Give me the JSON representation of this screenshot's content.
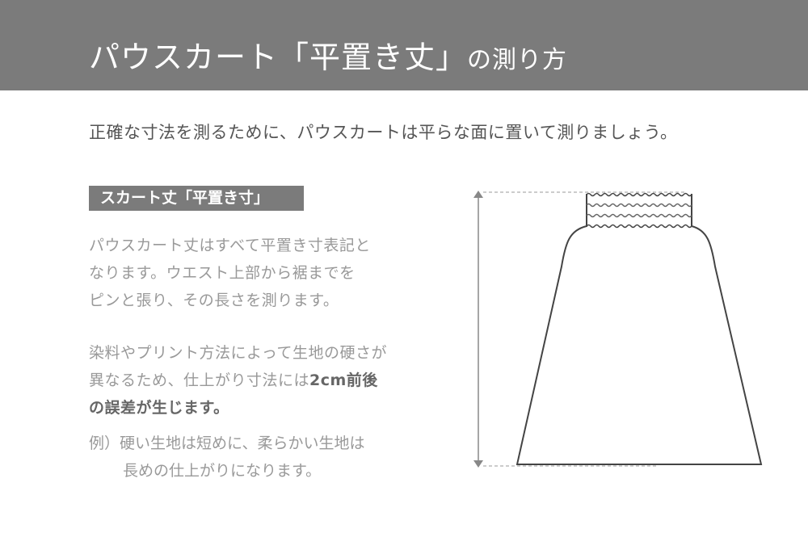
{
  "header": {
    "title_main": "パウスカート「平置き丈」",
    "title_suffix": "の測り方"
  },
  "intro": "正確な寸法を測るために、パウスカートは平らな面に置いて測りましょう。",
  "section_label": "スカート丈「平置き寸」",
  "paragraph1": [
    "パウスカート丈はすべて平置き寸表記と",
    "なります。ウエスト上部から裾までを",
    "ピンと張り、その長さを測ります。"
  ],
  "paragraph2": {
    "line1": "染料やプリント方法によって生地の硬さが",
    "line2_plain": "異なるため、仕上がり寸法には",
    "line2_bold": "2cm前後",
    "line3_bold": "の誤差が生じます。"
  },
  "example": {
    "prefix": "例）",
    "line1": "硬い生地は短めに、柔らかい生地は",
    "line2": "長めの仕上がりになります。"
  },
  "colors": {
    "header_bg": "#7b7b7b",
    "text": "#999999",
    "line": "#444444"
  }
}
